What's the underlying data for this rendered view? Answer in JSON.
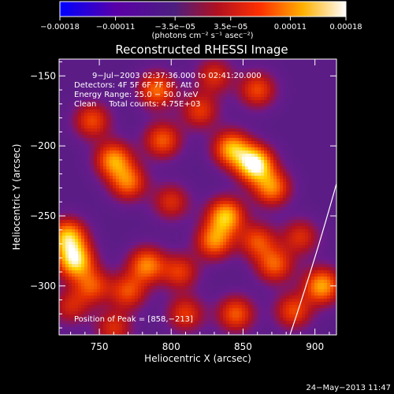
{
  "chart_data": {
    "type": "heatmap",
    "title": "Reconstructed RHESSI Image",
    "xlabel": "Heliocentric X (arcsec)",
    "ylabel": "Heliocentric Y (arcsec)",
    "xlim": [
      722,
      915
    ],
    "ylim": [
      -335,
      -138
    ],
    "xticks": [
      750,
      800,
      850,
      900
    ],
    "xtick_labels": [
      "750",
      "800",
      "850",
      "900"
    ],
    "yticks": [
      -150,
      -200,
      -250,
      -300
    ],
    "ytick_labels": [
      "−150",
      "−200",
      "−250",
      "−300"
    ],
    "colorbar": {
      "range": [
        -0.00018,
        0.00018
      ],
      "ticks": [
        -0.00018,
        -0.00011,
        -3.5e-05,
        3.5e-05,
        0.00011,
        0.00018
      ],
      "tick_labels": [
        "−0.00018",
        "−0.00011",
        "−3.5e−05",
        "3.5e−05",
        "0.00011",
        "0.00018"
      ],
      "unit_label": "(photons cm⁻² s⁻¹ asec⁻²)"
    },
    "annotations": [
      "9−Jul−2003 02:37:36.000 to 02:41:20.000",
      "Detectors: 4F 5F 6F 7F 8F, Att 0",
      "Energy Range: 25.0 − 50.0 keV",
      "Clean     Total counts: 4.75E+03"
    ],
    "peak_label": "Position of Peak = [858,−213]",
    "peak": {
      "x": 858,
      "y": -213,
      "value": 0.00018
    },
    "colormap_stops": [
      "#0000ff",
      "#3c00c8",
      "#5a00a6",
      "#4c1f80",
      "#6a1a8c",
      "#b01020",
      "#e63000",
      "#ff7a00",
      "#ffd400",
      "#ffffff"
    ],
    "blobs": [
      {
        "x": 858,
        "y": -213,
        "value": 0.00018
      },
      {
        "x": 842,
        "y": -202,
        "value": 0.00012
      },
      {
        "x": 870,
        "y": -230,
        "value": 0.0001
      },
      {
        "x": 838,
        "y": -250,
        "value": 0.00013
      },
      {
        "x": 830,
        "y": -268,
        "value": 0.0001
      },
      {
        "x": 760,
        "y": -210,
        "value": 0.00011
      },
      {
        "x": 770,
        "y": -226,
        "value": 9e-05
      },
      {
        "x": 745,
        "y": -182,
        "value": 7e-05
      },
      {
        "x": 790,
        "y": -160,
        "value": 9e-05
      },
      {
        "x": 794,
        "y": -196,
        "value": 8e-05
      },
      {
        "x": 728,
        "y": -265,
        "value": 0.00013
      },
      {
        "x": 733,
        "y": -282,
        "value": 0.00015
      },
      {
        "x": 745,
        "y": -300,
        "value": 7e-05
      },
      {
        "x": 783,
        "y": -285,
        "value": 0.0001
      },
      {
        "x": 770,
        "y": -304,
        "value": 7e-05
      },
      {
        "x": 806,
        "y": -290,
        "value": 6e-05
      },
      {
        "x": 860,
        "y": -268,
        "value": 7e-05
      },
      {
        "x": 872,
        "y": -285,
        "value": 8e-05
      },
      {
        "x": 905,
        "y": -300,
        "value": 0.00012
      },
      {
        "x": 845,
        "y": -320,
        "value": 8e-05
      },
      {
        "x": 810,
        "y": -320,
        "value": 6e-05
      },
      {
        "x": 760,
        "y": -330,
        "value": 5e-05
      },
      {
        "x": 730,
        "y": -315,
        "value": 4e-05
      },
      {
        "x": 860,
        "y": -160,
        "value": 7e-05
      },
      {
        "x": 820,
        "y": -175,
        "value": 6e-05
      },
      {
        "x": 830,
        "y": -150,
        "value": 5e-05
      },
      {
        "x": 890,
        "y": -265,
        "value": 5e-05
      },
      {
        "x": 885,
        "y": -318,
        "value": 7e-05
      },
      {
        "x": 800,
        "y": -240,
        "value": 5e-05
      }
    ],
    "grid": false
  },
  "footer": {
    "timestamp": "24−May−2013 11:47"
  }
}
